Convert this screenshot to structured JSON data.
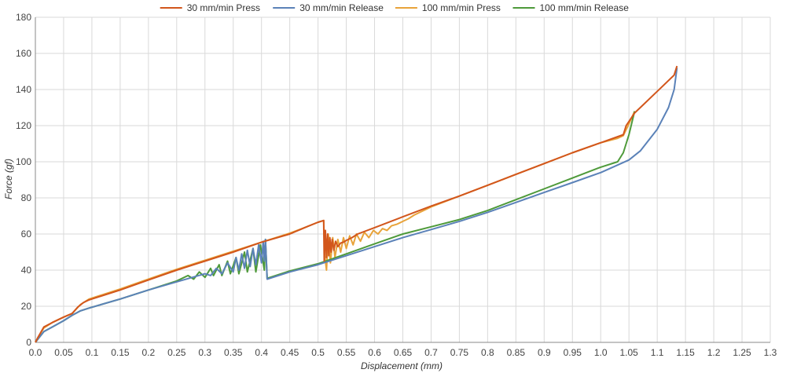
{
  "chart_data": {
    "type": "line",
    "title": "",
    "xlabel": "Displacement (mm)",
    "ylabel": "Force (gf)",
    "xlim": [
      0,
      1.3
    ],
    "ylim": [
      0,
      180
    ],
    "xticks": [
      0,
      0.05,
      0.1,
      0.15,
      0.2,
      0.25,
      0.3,
      0.35,
      0.4,
      0.45,
      0.5,
      0.55,
      0.6,
      0.65,
      0.7,
      0.75,
      0.8,
      0.85,
      0.9,
      0.95,
      1.0,
      1.05,
      1.1,
      1.15,
      1.2,
      1.25,
      1.3
    ],
    "xtick_labels": [
      "0.0",
      "0.05",
      "0.1",
      "0.15",
      "0.2",
      "0.25",
      "0.3",
      "0.35",
      "0.4",
      "0.45",
      "0.5",
      "0.55",
      "0.6",
      "0.65",
      "0.7",
      "0.75",
      "0.8",
      "0.85",
      "0.9",
      "0.95",
      "1.0",
      "1.05",
      "1.1",
      "1.15",
      "1.2",
      "1.25",
      "1.3"
    ],
    "yticks": [
      0,
      20,
      40,
      60,
      80,
      100,
      120,
      140,
      160,
      180
    ],
    "ytick_labels": [
      "0",
      "20",
      "40",
      "60",
      "80",
      "100",
      "120",
      "140",
      "160",
      "180"
    ],
    "grid": true,
    "legend_position": "top-center",
    "series": [
      {
        "name": "100 mm/min Press",
        "color": "#E8A33A",
        "x": [
          0.0,
          0.005,
          0.015,
          0.03,
          0.05,
          0.065,
          0.08,
          0.095,
          0.15,
          0.2,
          0.25,
          0.3,
          0.35,
          0.4,
          0.45,
          0.48,
          0.5,
          0.51,
          0.512,
          0.515,
          0.518,
          0.522,
          0.526,
          0.53,
          0.535,
          0.54,
          0.545,
          0.55,
          0.556,
          0.562,
          0.568,
          0.575,
          0.582,
          0.59,
          0.598,
          0.606,
          0.614,
          0.622,
          0.63,
          0.64,
          0.65,
          0.66,
          0.67,
          0.7,
          0.75,
          0.8,
          0.85,
          0.9,
          0.95,
          1.0,
          1.03,
          1.04,
          1.05,
          1.06
        ],
        "y": [
          0,
          3,
          8,
          11,
          14,
          16,
          21,
          24,
          29.5,
          35,
          40.5,
          45.5,
          50.5,
          55.5,
          60.5,
          64,
          66.5,
          67.5,
          48,
          40,
          60,
          44,
          58,
          47,
          57,
          50,
          58,
          52,
          59,
          54,
          60,
          56,
          61,
          58,
          62,
          60,
          63,
          62,
          64.5,
          65.5,
          67,
          68.5,
          70.5,
          75,
          81,
          87,
          93,
          99,
          105,
          110.5,
          113,
          114.5,
          121,
          128
        ]
      },
      {
        "name": "100 mm/min Release",
        "color": "#4E9A3A",
        "x": [
          0.0,
          0.005,
          0.015,
          0.03,
          0.05,
          0.065,
          0.08,
          0.095,
          0.15,
          0.2,
          0.25,
          0.27,
          0.28,
          0.29,
          0.3,
          0.31,
          0.315,
          0.325,
          0.33,
          0.34,
          0.345,
          0.355,
          0.36,
          0.37,
          0.375,
          0.385,
          0.39,
          0.398,
          0.405,
          0.407,
          0.41,
          0.45,
          0.5,
          0.55,
          0.6,
          0.65,
          0.7,
          0.75,
          0.8,
          0.85,
          0.9,
          0.95,
          1.0,
          1.03,
          1.04,
          1.05,
          1.06
        ],
        "y": [
          0,
          2,
          6,
          8.5,
          12,
          15,
          17.5,
          19,
          24,
          29,
          34,
          37,
          35,
          39,
          36,
          41,
          37,
          43,
          37,
          45,
          38,
          47,
          38,
          50,
          39,
          52,
          39,
          54,
          40,
          57,
          35.5,
          39.5,
          43.5,
          49,
          54.5,
          60,
          64,
          68,
          73,
          79,
          85,
          91,
          97,
          100,
          105,
          115,
          128
        ]
      },
      {
        "name": "30 mm/min Release",
        "color": "#5B82B8",
        "x": [
          0.0,
          0.005,
          0.015,
          0.03,
          0.05,
          0.065,
          0.08,
          0.095,
          0.15,
          0.2,
          0.25,
          0.3,
          0.31,
          0.32,
          0.33,
          0.34,
          0.35,
          0.355,
          0.36,
          0.365,
          0.37,
          0.375,
          0.38,
          0.385,
          0.39,
          0.395,
          0.4,
          0.403,
          0.405,
          0.407,
          0.41,
          0.45,
          0.5,
          0.55,
          0.6,
          0.65,
          0.7,
          0.75,
          0.8,
          0.85,
          0.9,
          0.95,
          1.0,
          1.05,
          1.07,
          1.1,
          1.12,
          1.13,
          1.135
        ],
        "y": [
          0,
          2,
          6,
          8.5,
          12,
          15,
          17.5,
          19,
          24,
          29,
          33.5,
          38,
          37,
          41,
          38,
          44,
          39,
          47,
          40,
          49,
          41,
          51,
          42,
          52,
          43,
          54,
          44,
          56,
          45,
          57,
          35,
          39,
          43,
          48,
          53,
          58,
          62.5,
          67,
          72,
          77.5,
          83,
          88.5,
          94,
          101,
          106,
          118,
          130,
          140,
          152
        ]
      },
      {
        "name": "30 mm/min Press",
        "color": "#D2561C",
        "x": [
          0.0,
          0.005,
          0.015,
          0.03,
          0.05,
          0.065,
          0.075,
          0.085,
          0.095,
          0.15,
          0.2,
          0.25,
          0.3,
          0.35,
          0.4,
          0.45,
          0.48,
          0.5,
          0.51,
          0.511,
          0.513,
          0.515,
          0.517,
          0.519,
          0.521,
          0.523,
          0.525,
          0.528,
          0.531,
          0.535,
          0.54,
          0.545,
          0.55,
          0.56,
          0.57,
          0.6,
          0.65,
          0.7,
          0.75,
          0.8,
          0.85,
          0.9,
          0.95,
          1.0,
          1.04,
          1.045,
          1.06,
          1.08,
          1.1,
          1.13,
          1.135
        ],
        "y": [
          0,
          3,
          8.5,
          11,
          14,
          16,
          19.5,
          22,
          23.5,
          29,
          34.5,
          40,
          45,
          50,
          55.5,
          60,
          64,
          66.5,
          67.5,
          45,
          62,
          47,
          60,
          48,
          58,
          50,
          57,
          51,
          56,
          53,
          55,
          55.5,
          56.5,
          58,
          60,
          63.5,
          69.5,
          75.5,
          81,
          87,
          93,
          99,
          105,
          110.5,
          115,
          120,
          127,
          133,
          139,
          148,
          153
        ]
      }
    ],
    "legend": [
      {
        "label": "30 mm/min Press",
        "color": "#D2561C"
      },
      {
        "label": "30 mm/min Release",
        "color": "#5B82B8"
      },
      {
        "label": "100 mm/min Press",
        "color": "#E8A33A"
      },
      {
        "label": "100 mm/min Release",
        "color": "#4E9A3A"
      }
    ]
  }
}
